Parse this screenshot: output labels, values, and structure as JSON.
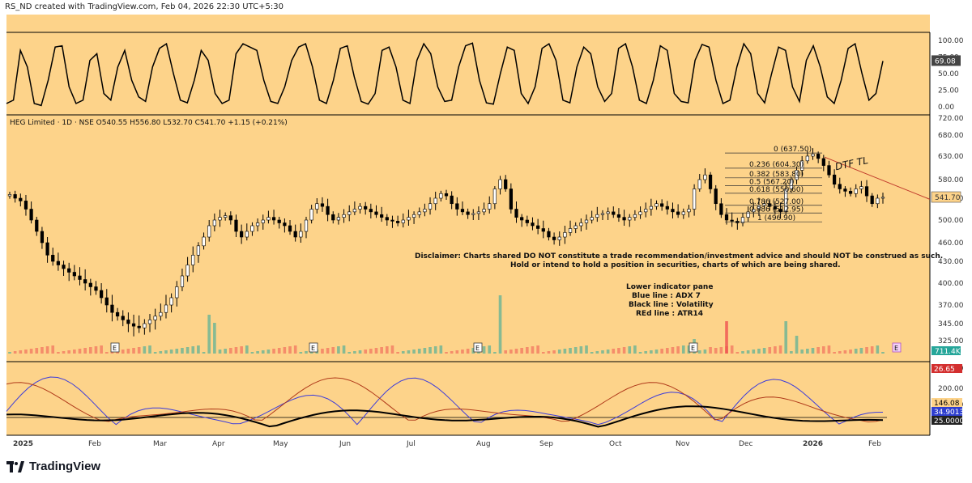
{
  "header": {
    "text": "RS_ND created with TradingView.com, Feb 04, 2026 22:30 UTC+5:30"
  },
  "footer": {
    "brand": "TradingView"
  },
  "colors": {
    "bg": "#fdd38a",
    "up": "#26a69a",
    "down": "#ef5350",
    "candle": "#000000",
    "adx": "#3b3bdb",
    "atr": "#b03a1a",
    "vol_line": "#000000",
    "tl": "#c0392b"
  },
  "chart_data": [
    {
      "type": "line",
      "name": "oscillator-pane",
      "ylim": [
        0,
        100
      ],
      "yticks": [
        "100.00",
        "75.00",
        "50.00",
        "25.00",
        "0.00"
      ],
      "last_value": "69.08",
      "values": [
        5,
        10,
        85,
        60,
        5,
        2,
        40,
        90,
        92,
        30,
        5,
        10,
        70,
        80,
        20,
        10,
        60,
        85,
        40,
        15,
        8,
        60,
        88,
        95,
        50,
        10,
        6,
        40,
        85,
        70,
        20,
        5,
        10,
        80,
        95,
        90,
        85,
        40,
        8,
        5,
        30,
        70,
        90,
        95,
        60,
        10,
        5,
        40,
        88,
        92,
        45,
        8,
        4,
        20,
        85,
        90,
        60,
        10,
        5,
        70,
        95,
        80,
        30,
        8,
        10,
        60,
        92,
        96,
        40,
        6,
        4,
        50,
        90,
        85,
        20,
        5,
        30,
        88,
        95,
        70,
        10,
        6,
        60,
        90,
        80,
        30,
        8,
        20,
        88,
        95,
        60,
        10,
        5,
        40,
        92,
        85,
        20,
        8,
        6,
        70,
        94,
        90,
        40,
        5,
        10,
        60,
        95,
        80,
        20,
        6,
        50,
        90,
        85,
        30,
        8,
        70,
        92,
        60,
        15,
        5,
        40,
        88,
        95,
        50,
        10,
        20,
        69
      ]
    },
    {
      "type": "candlestick",
      "name": "price-pane",
      "symbol": "HEG Limited · 1D · NSE",
      "ohlc_label": {
        "o": "O540.55",
        "h": "H556.80",
        "l": "L532.70",
        "c": "C541.70",
        "chg": "+1.15 (+0.21%)"
      },
      "ylim": [
        330,
        685
      ],
      "yticks": [
        "720.00",
        "680.00",
        "630.00",
        "580.00",
        "540.00",
        "500.00",
        "460.00",
        "430.00",
        "400.00",
        "370.00",
        "345.00",
        "325.00"
      ],
      "ytick_values": [
        720,
        680,
        630,
        580,
        540,
        500,
        460,
        430,
        400,
        370,
        345,
        325
      ],
      "last_price": "541.70",
      "volume_last": "711.4K",
      "closes": [
        548,
        540,
        535,
        520,
        500,
        480,
        460,
        440,
        430,
        425,
        420,
        415,
        410,
        405,
        400,
        395,
        390,
        380,
        370,
        360,
        355,
        350,
        345,
        342,
        340,
        345,
        350,
        355,
        360,
        370,
        380,
        395,
        410,
        425,
        440,
        455,
        470,
        490,
        500,
        505,
        508,
        500,
        480,
        470,
        480,
        490,
        495,
        500,
        505,
        500,
        495,
        490,
        480,
        470,
        480,
        500,
        520,
        530,
        525,
        510,
        500,
        505,
        510,
        515,
        520,
        525,
        520,
        515,
        510,
        505,
        500,
        498,
        495,
        500,
        505,
        510,
        515,
        520,
        530,
        540,
        550,
        545,
        530,
        520,
        515,
        510,
        512,
        515,
        520,
        530,
        560,
        580,
        560,
        520,
        505,
        500,
        495,
        490,
        485,
        480,
        470,
        465,
        470,
        478,
        485,
        490,
        495,
        500,
        505,
        510,
        512,
        515,
        510,
        505,
        500,
        505,
        510,
        515,
        520,
        525,
        530,
        525,
        520,
        515,
        510,
        515,
        520,
        560,
        580,
        590,
        560,
        530,
        510,
        500,
        498,
        495,
        505,
        515,
        520,
        527,
        530,
        525,
        520,
        515,
        560,
        580,
        600,
        620,
        630,
        635,
        625,
        610,
        590,
        570,
        560,
        555,
        550,
        560,
        565,
        545,
        530,
        540,
        542
      ],
      "fib_levels": [
        {
          "label": "0 (637.50)",
          "value": 637.5
        },
        {
          "label": "0.236 (604.30)",
          "value": 604.3
        },
        {
          "label": "0.382 (583.80)",
          "value": 583.8
        },
        {
          "label": "0.5 (567.20)",
          "value": 567.2
        },
        {
          "label": "0.618 (550.60)",
          "value": 550.6
        },
        {
          "label": "0.786 (527.00)",
          "value": 527.0
        },
        {
          "label": "0.886 (512.95)",
          "value": 512.95
        },
        {
          "label": "1 (496.90)",
          "value": 496.9
        }
      ],
      "annotations": {
        "tl": "DTF  TL",
        "disclaimer_1": "Disclaimer:  Charts shared DO NOT constitute a trade recommendation/investment advice and should NOT be construed as such.",
        "disclaimer_2": "Hold or intend to hold a position in securities, charts of which are being shared.",
        "legend_title": "Lower indicator pane",
        "legend_blue": "Blue line : ADX 7",
        "legend_black": "Black line : Volatility",
        "legend_red": "REd line : ATR14"
      },
      "earnings_markers": [
        "E",
        "E",
        "E",
        "E",
        "E"
      ]
    },
    {
      "type": "line",
      "name": "lower-indicator-pane",
      "yticks": [
        "300.00",
        "200.00",
        "100.00"
      ],
      "labels": {
        "atr": "26.65",
        "vol": "146.08",
        "adx": "34.9013",
        "base": "25.0000"
      },
      "x": [
        "2025",
        "Feb",
        "Mar",
        "Apr",
        "May",
        "Jun",
        "Jul",
        "Aug",
        "Sep",
        "Oct",
        "Nov",
        "Dec",
        "2026",
        "Feb"
      ]
    }
  ]
}
